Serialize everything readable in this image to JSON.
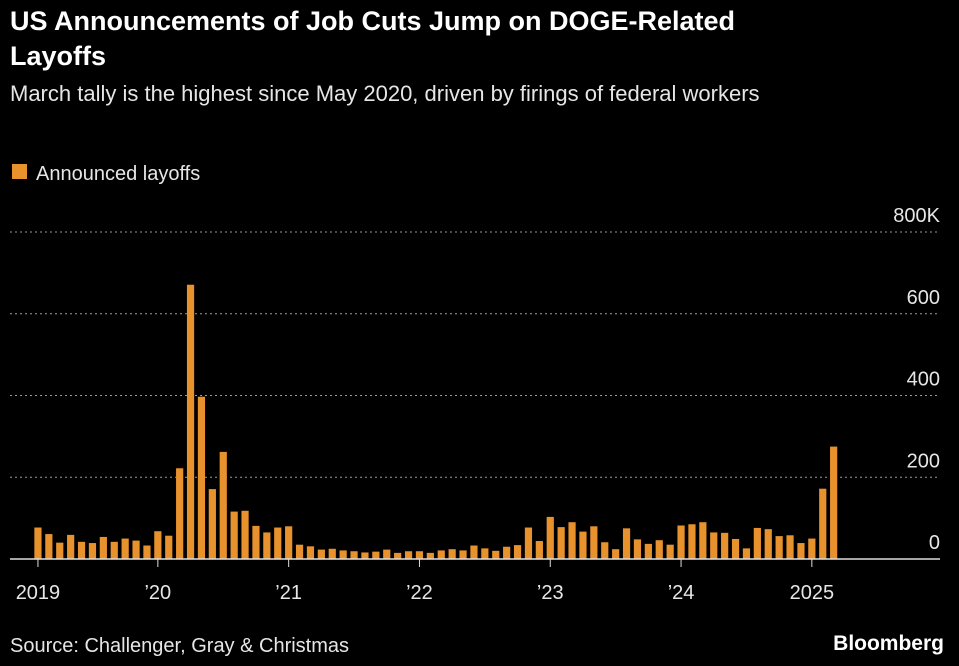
{
  "chart_data": {
    "type": "bar",
    "title": "US Announcements of Job Cuts Jump on DOGE-Related Layoffs",
    "subtitle": "March tally is the highest since May 2020, driven by firings of federal workers",
    "source": "Source: Challenger, Gray & Christmas",
    "brand": "Bloomberg",
    "categories": [
      "2019",
      null,
      null,
      null,
      null,
      null,
      null,
      null,
      null,
      null,
      null,
      "’20",
      null,
      null,
      null,
      null,
      null,
      null,
      null,
      null,
      null,
      null,
      null,
      "’21",
      null,
      null,
      null,
      null,
      null,
      null,
      null,
      null,
      null,
      null,
      null,
      "’22",
      null,
      null,
      null,
      null,
      null,
      null,
      null,
      null,
      null,
      null,
      null,
      "’23",
      null,
      null,
      null,
      null,
      null,
      null,
      null,
      null,
      null,
      null,
      null,
      "’24",
      null,
      null,
      null,
      null,
      null,
      null,
      null,
      null,
      null,
      null,
      null,
      "2025",
      null,
      null
    ],
    "series": [
      {
        "name": "Announced layoffs",
        "color": "#e8922e",
        "values": [
          77,
          61,
          40,
          59,
          42,
          39,
          54,
          42,
          50,
          45,
          33,
          68,
          57,
          222,
          671,
          397,
          171,
          262,
          116,
          118,
          81,
          65,
          77,
          80,
          35,
          31,
          23,
          25,
          21,
          19,
          16,
          18,
          23,
          15,
          19,
          19,
          15,
          21,
          24,
          21,
          33,
          26,
          20,
          30,
          34,
          77,
          44,
          103,
          78,
          90,
          67,
          80,
          41,
          24,
          75,
          48,
          37,
          46,
          35,
          82,
          85,
          90,
          65,
          64,
          49,
          26,
          76,
          73,
          56,
          58,
          39,
          50,
          172,
          275
        ]
      }
    ],
    "ylim": [
      0,
      800
    ],
    "yticks": [
      0,
      200,
      400,
      600,
      {
        "value": 800,
        "label": "800K"
      }
    ],
    "grid": true
  }
}
